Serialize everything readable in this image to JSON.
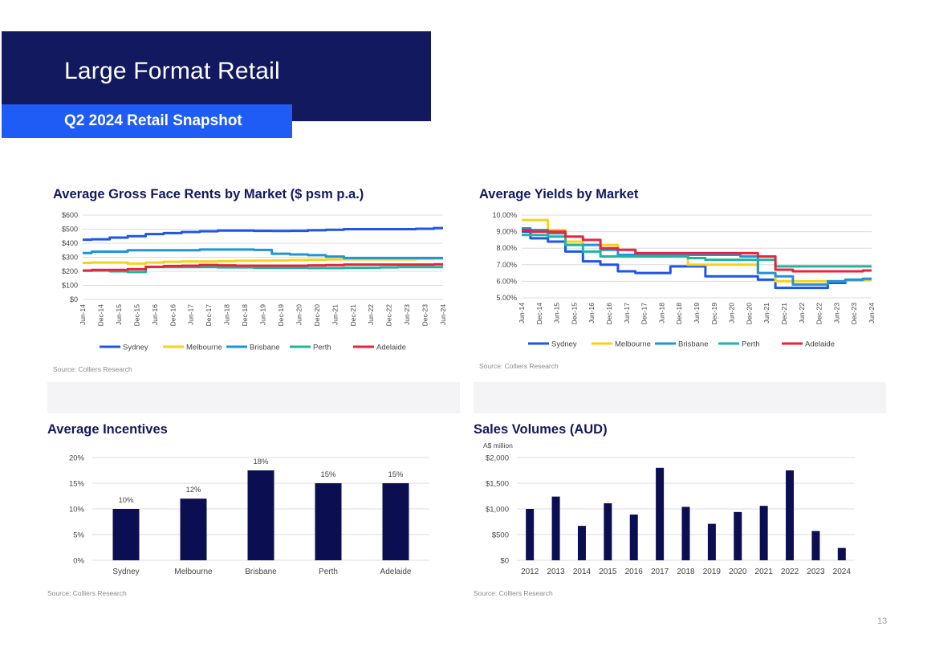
{
  "header": {
    "title": "Large Format Retail",
    "subtitle": "Q2 2024 Retail Snapshot"
  },
  "page_number": "13",
  "colors": {
    "navy": "#12195f",
    "blue": "#1f5cf6",
    "sydney": "#1e56e8",
    "melbourne": "#f7d21a",
    "brisbane": "#1f95d8",
    "perth": "#1fb5a0",
    "adelaide": "#e8243c",
    "bar": "#0b0f52"
  },
  "chart_data": [
    {
      "type": "line",
      "title": "Average Gross Face Rents by Market ($ psm p.a.)",
      "source": "Source: Colliers Research",
      "x": [
        "Jun-14",
        "Dec-14",
        "Jun-15",
        "Dec-15",
        "Jun-16",
        "Dec-16",
        "Jun-17",
        "Dec-17",
        "Jun-18",
        "Dec-18",
        "Jun-19",
        "Dec-19",
        "Jun-20",
        "Dec-20",
        "Jun-21",
        "Dec-21",
        "Jun-22",
        "Dec-22",
        "Jun-23",
        "Dec-23",
        "Jun-24"
      ],
      "ylim": [
        0,
        600
      ],
      "yticks": [
        "$0",
        "$100",
        "$200",
        "$300",
        "$400",
        "$500",
        "$600"
      ],
      "series": [
        {
          "name": "Sydney",
          "values": [
            425,
            428,
            440,
            450,
            465,
            472,
            480,
            485,
            490,
            490,
            488,
            487,
            488,
            492,
            496,
            500,
            500,
            500,
            500,
            503,
            508
          ]
        },
        {
          "name": "Melbourne",
          "values": [
            260,
            262,
            262,
            255,
            262,
            268,
            270,
            270,
            272,
            275,
            276,
            277,
            280,
            282,
            285,
            285,
            285,
            285,
            285,
            287,
            290
          ]
        },
        {
          "name": "Brisbane",
          "values": [
            330,
            340,
            340,
            350,
            350,
            350,
            350,
            355,
            355,
            355,
            352,
            325,
            320,
            315,
            305,
            295,
            295,
            295,
            295,
            295,
            295
          ]
        },
        {
          "name": "Perth",
          "values": [
            205,
            205,
            200,
            195,
            230,
            230,
            230,
            230,
            228,
            228,
            225,
            225,
            225,
            223,
            223,
            225,
            225,
            228,
            230,
            230,
            230
          ]
        },
        {
          "name": "Adelaide",
          "values": [
            205,
            210,
            210,
            215,
            232,
            238,
            240,
            245,
            242,
            240,
            240,
            240,
            240,
            242,
            244,
            248,
            248,
            248,
            248,
            248,
            250
          ]
        }
      ]
    },
    {
      "type": "line",
      "title": "Average Yields by Market",
      "source": "Source: Colliers Research",
      "x": [
        "Jun-14",
        "Dec-14",
        "Jun-15",
        "Dec-15",
        "Jun-16",
        "Dec-16",
        "Jun-17",
        "Dec-17",
        "Jun-18",
        "Dec-18",
        "Jun-19",
        "Dec-19",
        "Jun-20",
        "Dec-20",
        "Jun-21",
        "Dec-21",
        "Jun-22",
        "Dec-22",
        "Jun-23",
        "Dec-23",
        "Jun-24"
      ],
      "ylim": [
        5,
        10
      ],
      "yticks": [
        "5.00%",
        "6.00%",
        "7.00%",
        "8.00%",
        "9.00%",
        "10.00%"
      ],
      "series": [
        {
          "name": "Sydney",
          "values": [
            9.0,
            8.6,
            8.4,
            7.8,
            7.2,
            7.0,
            6.6,
            6.5,
            6.5,
            6.9,
            6.9,
            6.3,
            6.3,
            6.3,
            6.1,
            5.6,
            5.6,
            5.6,
            5.9,
            6.05,
            6.1
          ]
        },
        {
          "name": "Melbourne",
          "values": [
            9.7,
            9.7,
            9.1,
            8.4,
            8.2,
            8.2,
            7.6,
            7.5,
            7.5,
            7.5,
            7.0,
            7.0,
            7.0,
            7.0,
            6.5,
            6.0,
            6.0,
            6.0,
            6.0,
            6.05,
            6.1
          ]
        },
        {
          "name": "Brisbane",
          "values": [
            9.2,
            9.1,
            8.9,
            8.2,
            8.2,
            7.9,
            7.6,
            7.6,
            7.6,
            7.6,
            7.6,
            7.6,
            7.6,
            7.5,
            6.5,
            6.3,
            5.8,
            5.8,
            6.0,
            6.1,
            6.15
          ]
        },
        {
          "name": "Perth",
          "values": [
            8.8,
            8.8,
            8.7,
            8.2,
            7.8,
            7.5,
            7.5,
            7.5,
            7.5,
            7.5,
            7.4,
            7.3,
            7.3,
            7.3,
            7.3,
            6.9,
            6.9,
            6.9,
            6.9,
            6.9,
            6.9
          ]
        },
        {
          "name": "Adelaide",
          "values": [
            9.1,
            9.0,
            9.0,
            8.7,
            8.5,
            8.0,
            7.9,
            7.7,
            7.7,
            7.7,
            7.7,
            7.7,
            7.7,
            7.7,
            7.5,
            6.7,
            6.6,
            6.6,
            6.6,
            6.6,
            6.65
          ]
        }
      ]
    },
    {
      "type": "bar",
      "title": "Average Incentives",
      "source": "Source: Colliers Research",
      "categories": [
        "Sydney",
        "Melbourne",
        "Brisbane",
        "Perth",
        "Adelaide"
      ],
      "values": [
        10,
        12,
        17.5,
        15,
        15
      ],
      "data_labels": [
        "10%",
        "12%",
        "18%",
        "15%",
        "15%"
      ],
      "ylim": [
        0,
        20
      ],
      "yticks": [
        "0%",
        "5%",
        "10%",
        "15%",
        "20%"
      ]
    },
    {
      "type": "bar",
      "title": "Sales Volumes (AUD)",
      "ylabel": "A$ million",
      "source": "Source: Colliers Research",
      "categories": [
        "2012",
        "2013",
        "2014",
        "2015",
        "2016",
        "2017",
        "2018",
        "2019",
        "2020",
        "2021",
        "2022",
        "2023",
        "2024"
      ],
      "values": [
        1000,
        1240,
        670,
        1110,
        890,
        1800,
        1040,
        710,
        940,
        1060,
        1750,
        570,
        240
      ],
      "ylim": [
        0,
        2000
      ],
      "yticks": [
        "$0",
        "$500",
        "$1,000",
        "$1,500",
        "$2,000"
      ]
    }
  ]
}
